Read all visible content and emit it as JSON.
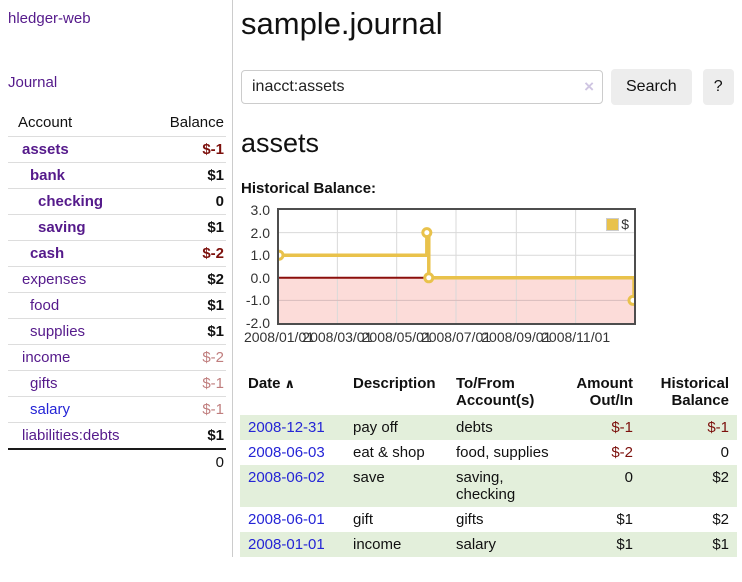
{
  "colors": {
    "purple": "#551a8b",
    "blue": "#2525d6",
    "neg-strong": "#7c100c",
    "neg-faded": "#c07e7e",
    "row-green": "#e3efdb",
    "chart-yellow": "#e9c24b",
    "chart-pink": "#fcdcd9",
    "zero-red": "#8b0f0c"
  },
  "app": {
    "brand": "hledger-web"
  },
  "sidebar": {
    "journal_link": "Journal",
    "table": {
      "headers": {
        "account": "Account",
        "balance": "Balance"
      },
      "rows": [
        {
          "account": "assets",
          "balance": "$-1",
          "depth": 1,
          "bold": true,
          "balance_style": "neg-strong"
        },
        {
          "account": "bank",
          "balance": "$1",
          "depth": 2,
          "bold": true,
          "balance_style": "normal"
        },
        {
          "account": "checking",
          "balance": "0",
          "depth": 3,
          "bold": true,
          "balance_style": "normal"
        },
        {
          "account": "saving",
          "balance": "$1",
          "depth": 3,
          "bold": true,
          "balance_style": "normal"
        },
        {
          "account": "cash",
          "balance": "$-2",
          "depth": 2,
          "bold": true,
          "balance_style": "neg-strong"
        },
        {
          "account": "expenses",
          "balance": "$2",
          "depth": 1,
          "bold": false,
          "balance_style": "plain"
        },
        {
          "account": "food",
          "balance": "$1",
          "depth": 2,
          "bold": false,
          "balance_style": "plain"
        },
        {
          "account": "supplies",
          "balance": "$1",
          "depth": 2,
          "bold": false,
          "balance_style": "plain"
        },
        {
          "account": "income",
          "balance": "$-2",
          "depth": 1,
          "bold": false,
          "balance_style": "neg-faded"
        },
        {
          "account": "gifts",
          "balance": "$-1",
          "depth": 2,
          "bold": false,
          "balance_style": "neg-faded"
        },
        {
          "account": "salary",
          "balance": "$-1",
          "depth": 2,
          "bold": false,
          "balance_style": "neg-faded",
          "link_color": "blue"
        },
        {
          "account": "liabilities:debts",
          "balance": "$1",
          "depth": 1,
          "bold": false,
          "balance_style": "plain"
        }
      ],
      "total": "0"
    }
  },
  "header": {
    "title": "sample.journal"
  },
  "search": {
    "value": "inacct:assets",
    "clear_icon": "×",
    "button_label": "Search",
    "help_label": "?"
  },
  "account_page": {
    "heading": "assets",
    "chart_label": "Historical Balance:"
  },
  "chart_data": {
    "type": "line",
    "title": "Historical Balance",
    "step": true,
    "ylim": [
      -2,
      3
    ],
    "x_range": [
      "2008-01-01",
      "2008-12-31"
    ],
    "y_tick_values": [
      3,
      2,
      1,
      0,
      -1,
      -2
    ],
    "y_tick_labels": [
      "3.0",
      "2.0",
      "1.0",
      "0.0",
      "-1.0",
      "-2.0"
    ],
    "x_tick_dates": [
      "2008-01-01",
      "2008-03-01",
      "2008-05-01",
      "2008-07-01",
      "2008-09-01",
      "2008-11-01"
    ],
    "x_tick_labels": [
      "2008/01/01",
      "2008/03/01",
      "2008/05/01",
      "2008/07/01",
      "2008/09/01",
      "2008/11/01"
    ],
    "legend": [
      {
        "label": "$",
        "color": "#e9c24b"
      }
    ],
    "legend_position": "top-right",
    "grid": true,
    "series": [
      {
        "name": "$",
        "color": "#e9c24b",
        "points": [
          [
            "2008-01-01",
            1
          ],
          [
            "2008-06-01",
            2
          ],
          [
            "2008-06-03",
            0
          ],
          [
            "2008-12-31",
            -1
          ]
        ]
      }
    ],
    "negative_region_color": "#fcdcd9",
    "zero_line_color": "#8b0f0c"
  },
  "register": {
    "headers": {
      "date": "Date",
      "sort_icon": "∧",
      "description": "Description",
      "accounts": "To/From Account(s)",
      "amount": "Amount Out/In",
      "balance": "Historical Balance"
    },
    "rows": [
      {
        "date": "2008-12-31",
        "description": "pay off",
        "accounts": "debts",
        "amount": "$-1",
        "amount_neg": true,
        "balance": "$-1",
        "balance_neg": true
      },
      {
        "date": "2008-06-03",
        "description": "eat & shop",
        "accounts": "food, supplies",
        "amount": "$-2",
        "amount_neg": true,
        "balance": "0",
        "balance_neg": false
      },
      {
        "date": "2008-06-02",
        "description": "save",
        "accounts": "saving, checking",
        "amount": "0",
        "amount_neg": false,
        "balance": "$2",
        "balance_neg": false
      },
      {
        "date": "2008-06-01",
        "description": "gift",
        "accounts": "gifts",
        "amount": "$1",
        "amount_neg": false,
        "balance": "$2",
        "balance_neg": false
      },
      {
        "date": "2008-01-01",
        "description": "income",
        "accounts": "salary",
        "amount": "$1",
        "amount_neg": false,
        "balance": "$1",
        "balance_neg": false
      }
    ]
  }
}
